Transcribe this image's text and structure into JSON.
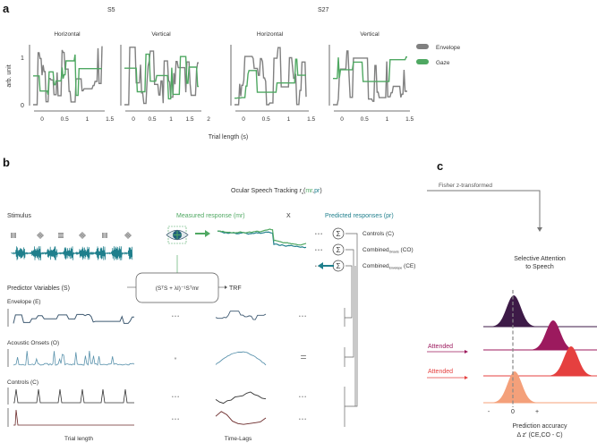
{
  "panel_a": {
    "label": "a",
    "subjects": [
      "S5",
      "S27"
    ],
    "plot_titles": [
      "Horizontal",
      "Vertical",
      "Horizontal",
      "Vertical"
    ],
    "ylabel": "arb. unit",
    "yticks": [
      "0",
      "1"
    ],
    "xticks": [
      [
        "0",
        "0.5",
        "1",
        "1.5"
      ],
      [
        "0",
        "0.5",
        "1",
        "1.5",
        "2"
      ],
      [
        "0",
        "0.5",
        "1",
        "1.5"
      ],
      [
        "0",
        "0.5",
        "1",
        "1.5"
      ]
    ],
    "xlabel": "Trial length (s)",
    "legend": [
      {
        "name": "Envelope",
        "color": "#808080"
      },
      {
        "name": "Gaze",
        "color": "#4fa862"
      }
    ]
  },
  "panel_b": {
    "label": "b",
    "ost_title": "Ocular Speech Tracking ",
    "ost_r": "r",
    "ost_sub": "s",
    "ost_open": "(",
    "ost_mr": "mr",
    "ost_comma": ",",
    "ost_pr": "pr",
    "ost_close": ")",
    "stimulus": "Stimulus",
    "measured": "Measured response (mr)",
    "times": "X",
    "predicted": "Predicted responses (pr)",
    "sigma": "Σ",
    "dots": "• • •",
    "models": [
      {
        "main": "Controls (C)",
        "sub": "",
        "tail": ""
      },
      {
        "main": "Combined",
        "sub": "Onsets",
        "tail": " (CO)"
      },
      {
        "main": "Combined",
        "sub": "Envelope",
        "tail": " (CE)"
      }
    ],
    "predictors_title": "Predictor Variables (S)",
    "formula": "(SᵀS + λI)⁻¹Sᵀmr",
    "trf": "TRF",
    "predictors": [
      "Envelope (E)",
      "Acoustic Onsets (O)",
      "Controls (C)"
    ],
    "convolve": "*",
    "equals": "=",
    "trial_length": "Trial length",
    "time_lags": "Time-Lags",
    "colors": {
      "green": "#4fa862",
      "teal": "#1f7f8c",
      "envelope": "#3f5a72",
      "onsets": "#5b93ad"
    }
  },
  "panel_c": {
    "label": "c",
    "fisher": "Fisher z-transformed",
    "title1": "Selective Attention",
    "title2": "to Speech",
    "attended": [
      "Attended",
      "Attended"
    ],
    "xticks": [
      "-",
      "0",
      "+"
    ],
    "xlabel1": "Prediction accuracy",
    "xlabel2": "Δ z' (CE,CO - C)",
    "ridge_colors": [
      "#3d1a47",
      "#9c1a5e",
      "#e5403f",
      "#f4a07a"
    ]
  }
}
